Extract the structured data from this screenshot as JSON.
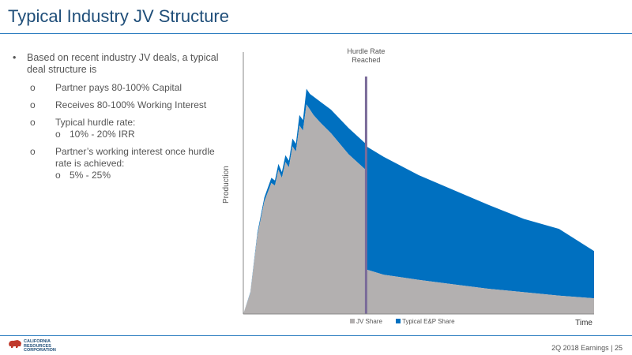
{
  "slide": {
    "title": "Typical Industry JV Structure",
    "page_footer": "2Q 2018 Earnings  |  25"
  },
  "logo": {
    "line1": "CALIFORNIA",
    "line2": "RESOURCES",
    "line3": "CORPORATION",
    "accent_color": "#c0392b"
  },
  "bullets": {
    "mark": "•",
    "sub_mark": "o",
    "main": "Based on recent industry JV deals, a typical deal structure is",
    "items": [
      "Partner pays 80-100% Capital",
      "Receives 80-100% Working Interest",
      "Typical hurdle rate:",
      "Partner’s working interest once hurdle rate is achieved:"
    ],
    "subitems": [
      "10% - 20% IRR",
      "5% - 25%"
    ]
  },
  "chart_data": {
    "type": "area",
    "stacked": true,
    "xlabel": "Time",
    "ylabel": "Production",
    "axis_ticks": false,
    "grid": false,
    "legend_position": "bottom",
    "annotation": {
      "label_line1": "Hurdle Rate",
      "label_line2": "Reached",
      "x": 0.35,
      "color": "#7a6b99"
    },
    "x": [
      0,
      0.02,
      0.04,
      0.06,
      0.08,
      0.09,
      0.1,
      0.11,
      0.12,
      0.13,
      0.14,
      0.15,
      0.16,
      0.17,
      0.18,
      0.19,
      0.2,
      0.22,
      0.25,
      0.3,
      0.349,
      0.351,
      0.4,
      0.5,
      0.6,
      0.7,
      0.8,
      0.9,
      1.0
    ],
    "series": [
      {
        "name": "JV Share",
        "color": "#b3b0b0",
        "values": [
          0,
          8,
          30,
          43,
          50,
          49,
          55,
          52,
          58,
          56,
          64,
          62,
          72,
          70,
          80,
          78,
          76,
          73,
          69,
          61,
          55,
          17,
          15,
          13,
          11.3,
          9.6,
          8.3,
          7,
          6
        ]
      },
      {
        "name": "Typical E&P Share",
        "color": "#0070c0",
        "values": [
          0,
          0.3,
          1,
          1.5,
          2,
          2,
          2.3,
          2.2,
          2.6,
          2.5,
          3,
          3,
          4,
          4,
          6,
          6,
          7,
          8,
          9,
          10,
          10,
          47,
          45,
          40,
          36,
          32,
          28,
          25.5,
          18
        ]
      }
    ],
    "ylim": [
      0,
      100
    ]
  }
}
